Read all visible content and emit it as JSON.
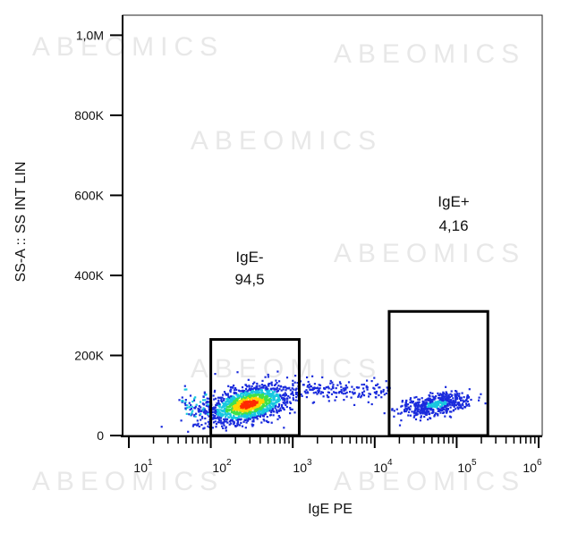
{
  "chart_data": {
    "type": "scatter",
    "xlabel": "IgE PE",
    "ylabel": "SS-A :: SS INT LIN",
    "x_scale": "log",
    "xlim": [
      10,
      1000000
    ],
    "ylim": [
      0,
      1050000
    ],
    "y_ticks": [
      {
        "value": 0,
        "label": "0"
      },
      {
        "value": 200000,
        "label": "200K"
      },
      {
        "value": 400000,
        "label": "400K"
      },
      {
        "value": 600000,
        "label": "600K"
      },
      {
        "value": 800000,
        "label": "800K"
      },
      {
        "value": 1000000,
        "label": "1,0M"
      }
    ],
    "x_ticks": [
      {
        "value": 10,
        "base": "10",
        "exp": "1"
      },
      {
        "value": 100,
        "base": "10",
        "exp": "2"
      },
      {
        "value": 1000,
        "base": "10",
        "exp": "3"
      },
      {
        "value": 10000,
        "base": "10",
        "exp": "4"
      },
      {
        "value": 100000,
        "base": "10",
        "exp": "5"
      },
      {
        "value": 1000000,
        "base": "10",
        "exp": "6"
      }
    ],
    "gates": [
      {
        "name": "IgE-",
        "value": "94,5",
        "x_range": [
          100,
          1200
        ],
        "y_range": [
          0,
          240000
        ]
      },
      {
        "name": "IgE+",
        "value": "4,16",
        "x_range": [
          15000,
          240000
        ],
        "y_range": [
          0,
          310000
        ]
      }
    ],
    "populations": [
      {
        "name": "IgE- population",
        "x_center": 280,
        "y_center": 80000,
        "density": "high"
      },
      {
        "name": "IgE+ population",
        "x_center": 55000,
        "y_center": 80000,
        "density": "medium"
      },
      {
        "name": "intermediate events",
        "x_center": 5500,
        "y_center": 120000,
        "density": "low"
      }
    ],
    "colors": {
      "high": "#ff2a00",
      "mid_high": "#ffd500",
      "mid": "#3ee24a",
      "mid_low": "#18c8e0",
      "low": "#1a2bdc"
    },
    "watermark": "ABEOMICS",
    "grid": false,
    "legend": "none"
  }
}
